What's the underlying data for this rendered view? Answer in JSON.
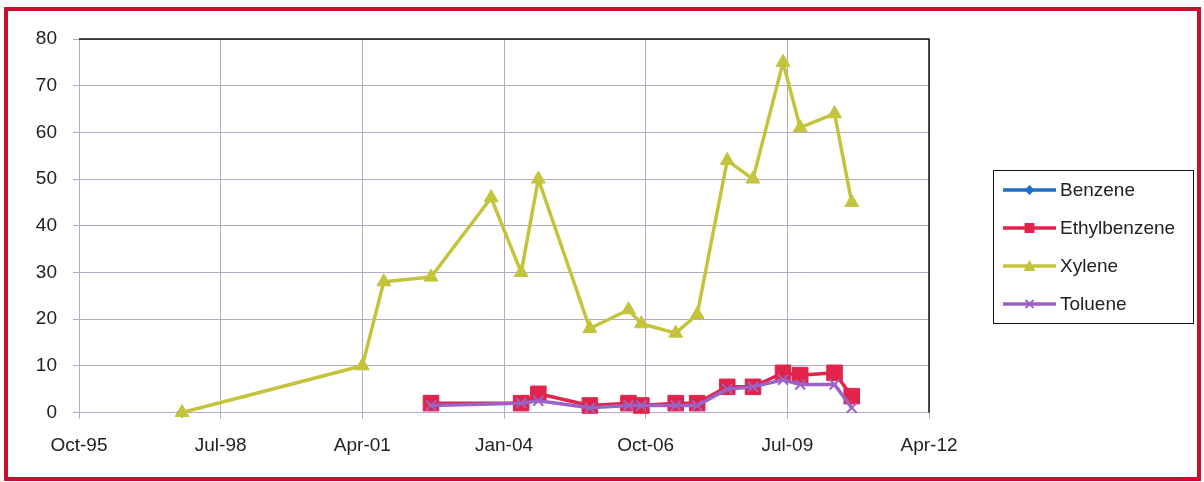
{
  "chart_data": {
    "type": "line",
    "xlim": [
      "1995-10",
      "2012-04"
    ],
    "xticks": [
      {
        "value": "1995-10",
        "label": "Oct-95"
      },
      {
        "value": "1998-07",
        "label": "Jul-98"
      },
      {
        "value": "2001-04",
        "label": "Apr-01"
      },
      {
        "value": "2004-01",
        "label": "Jan-04"
      },
      {
        "value": "2006-10",
        "label": "Oct-06"
      },
      {
        "value": "2009-07",
        "label": "Jul-09"
      },
      {
        "value": "2012-04",
        "label": "Apr-12"
      }
    ],
    "ylim": [
      0,
      80
    ],
    "yticks": [
      0,
      10,
      20,
      30,
      40,
      50,
      60,
      70,
      80
    ],
    "grid": true,
    "legend": "right",
    "series": [
      {
        "name": "Benzene",
        "color": "#1f6fc4",
        "marker": "diamond",
        "x": [
          "1997-10"
        ],
        "values": [
          0
        ]
      },
      {
        "name": "Ethylbenzene",
        "color": "#e2234c",
        "marker": "square",
        "x": [
          "2002-08",
          "2004-05",
          "2004-09",
          "2005-09",
          "2006-06",
          "2006-09",
          "2007-05",
          "2007-10",
          "2008-05",
          "2008-11",
          "2009-06",
          "2009-10",
          "2010-06",
          "2010-10"
        ],
        "values": [
          2,
          2,
          4,
          1.5,
          2,
          1.5,
          2,
          2,
          5.5,
          5.5,
          8.5,
          8,
          8.5,
          3.5
        ]
      },
      {
        "name": "Xylene",
        "color": "#c4c43c",
        "marker": "triangle",
        "x": [
          "1997-10",
          "2001-04",
          "2001-09",
          "2002-08",
          "2003-10",
          "2004-05",
          "2004-09",
          "2005-09",
          "2006-06",
          "2006-09",
          "2007-05",
          "2007-10",
          "2008-05",
          "2008-11",
          "2009-06",
          "2009-10",
          "2010-06",
          "2010-10"
        ],
        "values": [
          0,
          10,
          28,
          29,
          46,
          30,
          50,
          18,
          22,
          19,
          17,
          21,
          54,
          50,
          75,
          61,
          64,
          45
        ]
      },
      {
        "name": "Toluene",
        "color": "#9b63c4",
        "marker": "cross",
        "x": [
          "2002-08",
          "2004-05",
          "2004-09",
          "2005-09",
          "2006-06",
          "2006-09",
          "2007-05",
          "2007-10",
          "2008-05",
          "2008-11",
          "2009-06",
          "2009-10",
          "2010-06",
          "2010-10"
        ],
        "values": [
          1.5,
          2,
          2.5,
          1,
          1.5,
          1.5,
          1.5,
          1.5,
          5,
          5.5,
          7,
          6,
          6,
          1
        ]
      }
    ]
  }
}
